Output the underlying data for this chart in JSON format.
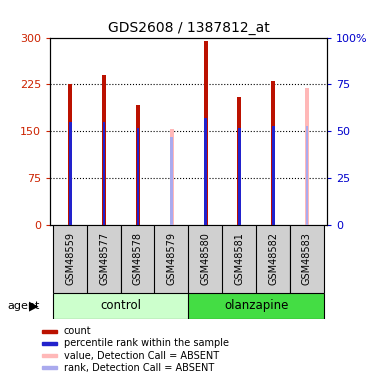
{
  "title": "GDS2608 / 1387812_at",
  "samples": [
    "GSM48559",
    "GSM48577",
    "GSM48578",
    "GSM48579",
    "GSM48580",
    "GSM48581",
    "GSM48582",
    "GSM48583"
  ],
  "count_values": [
    226,
    240,
    192,
    null,
    295,
    205,
    230,
    null
  ],
  "rank_values": [
    55,
    55,
    52,
    null,
    57,
    52,
    53,
    null
  ],
  "absent_count_values": [
    null,
    null,
    null,
    153,
    null,
    null,
    null,
    220
  ],
  "absent_rank_values": [
    null,
    null,
    null,
    47,
    null,
    null,
    null,
    53
  ],
  "ylim_left": [
    0,
    300
  ],
  "ylim_right": [
    0,
    100
  ],
  "yticks_left": [
    0,
    75,
    150,
    225,
    300
  ],
  "ytick_labels_left": [
    "0",
    "75",
    "150",
    "225",
    "300"
  ],
  "yticks_right": [
    0,
    25,
    50,
    75,
    100
  ],
  "ytick_labels_right": [
    "0",
    "25",
    "50",
    "75",
    "100%"
  ],
  "bar_color_present": "#bb1100",
  "bar_color_absent": "#ffb8b8",
  "rank_color_present": "#2222cc",
  "rank_color_absent": "#aaaaee",
  "bar_width": 0.12,
  "rank_bar_width": 0.08,
  "background_color": "#ffffff",
  "control_color": "#ccffcc",
  "olanzapine_color": "#44dd44",
  "legend_items": [
    "count",
    "percentile rank within the sample",
    "value, Detection Call = ABSENT",
    "rank, Detection Call = ABSENT"
  ],
  "legend_colors": [
    "#bb1100",
    "#2222cc",
    "#ffb8b8",
    "#aaaaee"
  ],
  "grid_yticks": [
    75,
    150,
    225
  ]
}
